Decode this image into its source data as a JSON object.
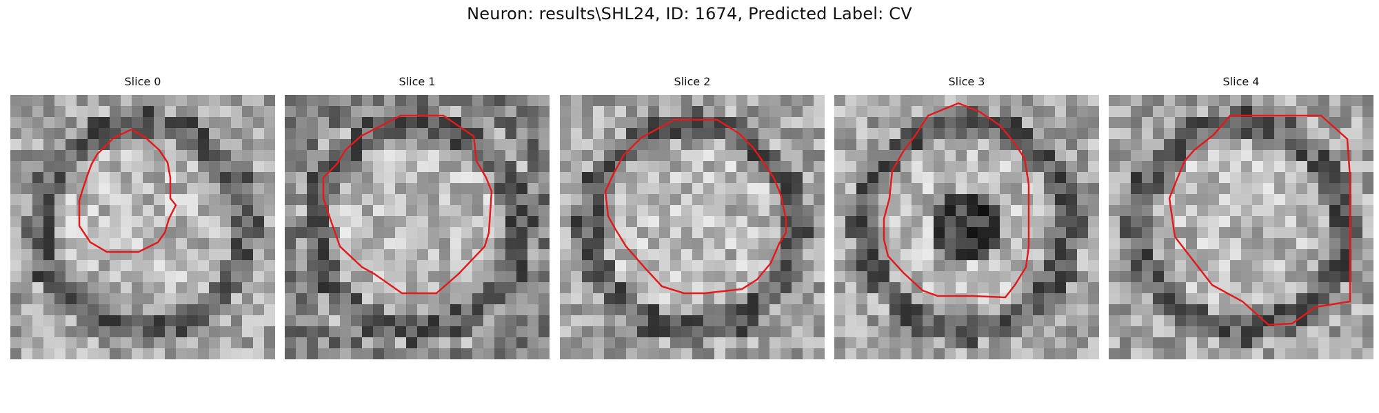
{
  "figure": {
    "title": "Neuron: results\\SHL24, ID: 1674, Predicted Label: CV"
  },
  "colors": {
    "contour": "#e11b1b",
    "background": "#ffffff"
  },
  "slices": [
    {
      "label": "Slice 0",
      "seed": 11,
      "dark_outer": false,
      "dark_center": false
    },
    {
      "label": "Slice 1",
      "seed": 23,
      "dark_outer": true,
      "dark_center": false
    },
    {
      "label": "Slice 2",
      "seed": 37,
      "dark_outer": false,
      "dark_center": false
    },
    {
      "label": "Slice 3",
      "seed": 51,
      "dark_outer": false,
      "dark_center": true
    },
    {
      "label": "Slice 4",
      "seed": 67,
      "dark_outer": false,
      "dark_center": false
    }
  ]
}
